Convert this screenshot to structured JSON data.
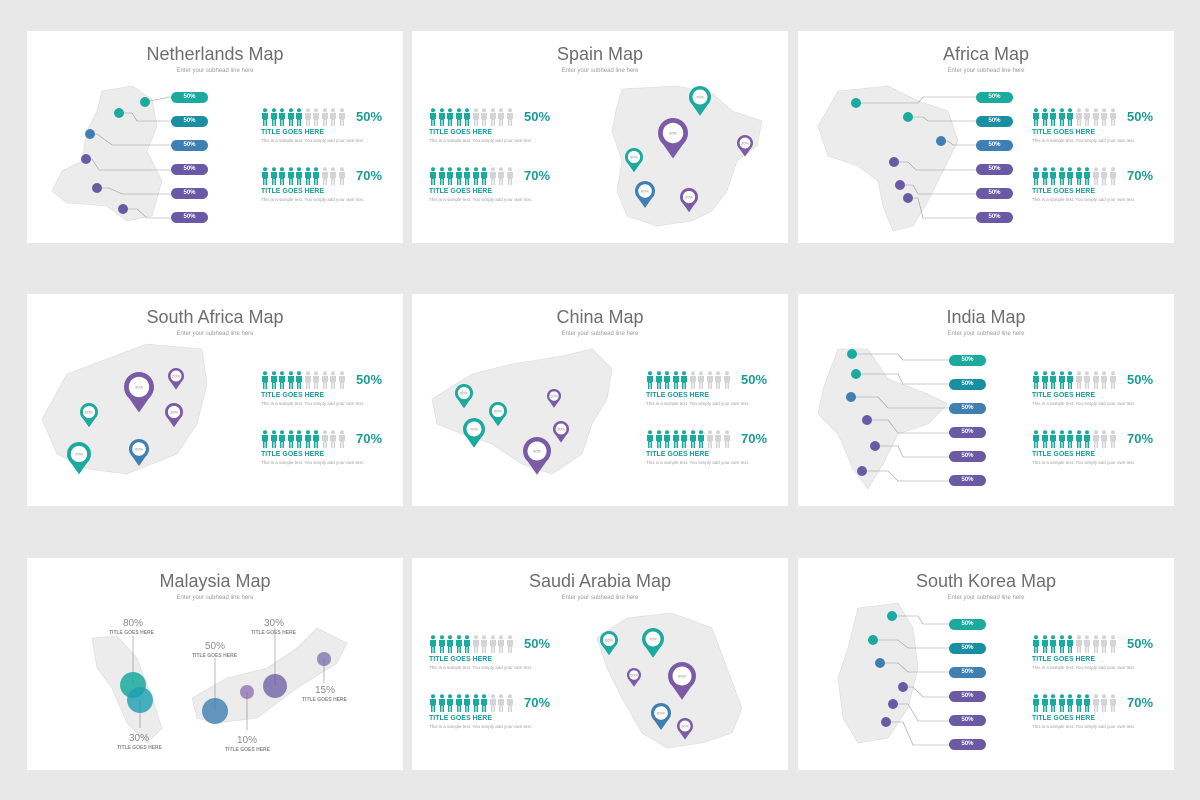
{
  "colors": {
    "teal": "#1aaa9e",
    "blue": "#3f7fb1",
    "purple": "#6a5aa5",
    "violet": "#7c5ba6",
    "gray_icon": "#d4d4d4",
    "map": "#ececec"
  },
  "slides": {
    "netherlands": {
      "title": "Netherlands Map",
      "subtitle": "Enter your subhead line here"
    },
    "spain": {
      "title": "Spain Map",
      "subtitle": "Enter your subhead line here"
    },
    "africa": {
      "title": "Africa Map",
      "subtitle": "Enter your subhead line here"
    },
    "south_africa": {
      "title": "South Africa Map",
      "subtitle": "Enter your subhead line here"
    },
    "china": {
      "title": "China Map",
      "subtitle": "Enter your subhead line here"
    },
    "india": {
      "title": "India Map",
      "subtitle": "Enter your subhead line here"
    },
    "malaysia": {
      "title": "Malaysia Map",
      "subtitle": "Enter your subhead line here"
    },
    "saudi": {
      "title": "Saudi Arabia Map",
      "subtitle": "Enter your subhead line here"
    },
    "korea": {
      "title": "South Korea Map",
      "subtitle": "Enter your subhead line here"
    }
  },
  "stat": {
    "a_pct": "50%",
    "b_pct": "70%",
    "a_filled": 5,
    "b_filled": 7,
    "total_icons": 10,
    "title": "TITLE GOES HERE",
    "text": "This is a sample text. You simply add your own text."
  },
  "pill_value": "50%",
  "spain_pins": [
    "70%",
    "90%",
    "50%",
    "60%",
    "30%",
    "20%"
  ],
  "sa_pins": [
    "90%",
    "50%",
    "30%",
    "70%",
    "60%",
    "20%"
  ],
  "china_pins": [
    "50%",
    "60%",
    "70%",
    "90%",
    "30%",
    "10%"
  ],
  "saudi_pins": [
    "60%",
    "70%",
    "20%",
    "90%",
    "60%",
    "30%"
  ],
  "malaysia": {
    "items": [
      {
        "pct": "80%",
        "caption": "TITLE GOES HERE"
      },
      {
        "pct": "30%",
        "caption": "TITLE GOES HERE"
      },
      {
        "pct": "50%",
        "caption": "TITLE GOES HERE"
      },
      {
        "pct": "10%",
        "caption": "TITLE GOES HERE"
      },
      {
        "pct": "30%",
        "caption": "TITLE GOES HERE"
      },
      {
        "pct": "15%",
        "caption": "TITLE GOES HERE"
      }
    ]
  }
}
